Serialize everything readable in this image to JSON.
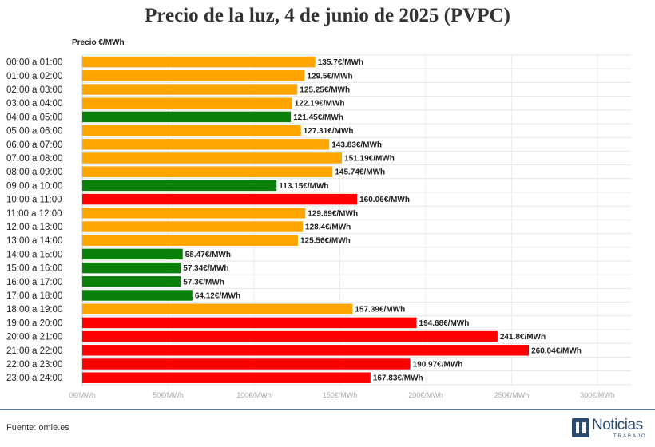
{
  "chart_data": {
    "type": "bar",
    "orientation": "horizontal",
    "title": "Precio de la luz, 4 de junio de 2025 (PVPC)",
    "axis_title": "Precio €/MWh",
    "xlim": [
      0,
      300
    ],
    "ticks": [
      0,
      50,
      100,
      150,
      200,
      250,
      300
    ],
    "tick_labels": [
      "0€/MWh",
      "50€/MWh",
      "100€/MWh",
      "150€/MWh",
      "200€/MWh",
      "250€/MWh",
      "300€/MWh"
    ],
    "grid": true,
    "categories": [
      "00:00 a 01:00",
      "01:00 a 02:00",
      "02:00 a 03:00",
      "03:00 a 04:00",
      "04:00 a 05:00",
      "05:00 a 06:00",
      "06:00 a 07:00",
      "07:00 a 08:00",
      "08:00 a 09:00",
      "09:00 a 10:00",
      "10:00 a 11:00",
      "11:00 a 12:00",
      "12:00 a 13:00",
      "13:00 a 14:00",
      "14:00 a 15:00",
      "15:00 a 16:00",
      "16:00 a 17:00",
      "17:00 a 18:00",
      "18:00 a 19:00",
      "19:00 a 20:00",
      "20:00 a 21:00",
      "21:00 a 22:00",
      "22:00 a 23:00",
      "23:00 a 24:00"
    ],
    "values": [
      135.7,
      129.5,
      125.25,
      122.19,
      121.45,
      127.31,
      143.83,
      151.19,
      145.74,
      113.15,
      160.06,
      129.89,
      128.4,
      125.56,
      58.47,
      57.34,
      57.3,
      64.12,
      157.39,
      194.68,
      241.8,
      260.04,
      190.97,
      167.83
    ],
    "value_labels": [
      "135.7€/MWh",
      "129.5€/MWh",
      "125.25€/MWh",
      "122.19€/MWh",
      "121.45€/MWh",
      "127.31€/MWh",
      "143.83€/MWh",
      "151.19€/MWh",
      "145.74€/MWh",
      "113.15€/MWh",
      "160.06€/MWh",
      "129.89€/MWh",
      "128.4€/MWh",
      "125.56€/MWh",
      "58.47€/MWh",
      "57.34€/MWh",
      "57.3€/MWh",
      "64.12€/MWh",
      "157.39€/MWh",
      "194.68€/MWh",
      "241.8€/MWh",
      "260.04€/MWh",
      "190.97€/MWh",
      "167.83€/MWh"
    ],
    "bar_levels": [
      "medio",
      "medio",
      "medio",
      "medio",
      "bajo",
      "medio",
      "medio",
      "medio",
      "medio",
      "bajo",
      "alto",
      "medio",
      "medio",
      "medio",
      "bajo",
      "bajo",
      "bajo",
      "bajo",
      "medio",
      "alto",
      "alto",
      "alto",
      "alto",
      "alto"
    ],
    "level_colors": {
      "bajo": "#0a800a",
      "medio": "#ffa500",
      "alto": "#ff0000"
    }
  },
  "footer": {
    "source": "Fuente: omie.es"
  },
  "logo": {
    "brand": "Noticias",
    "sub": "TRABAJO"
  }
}
